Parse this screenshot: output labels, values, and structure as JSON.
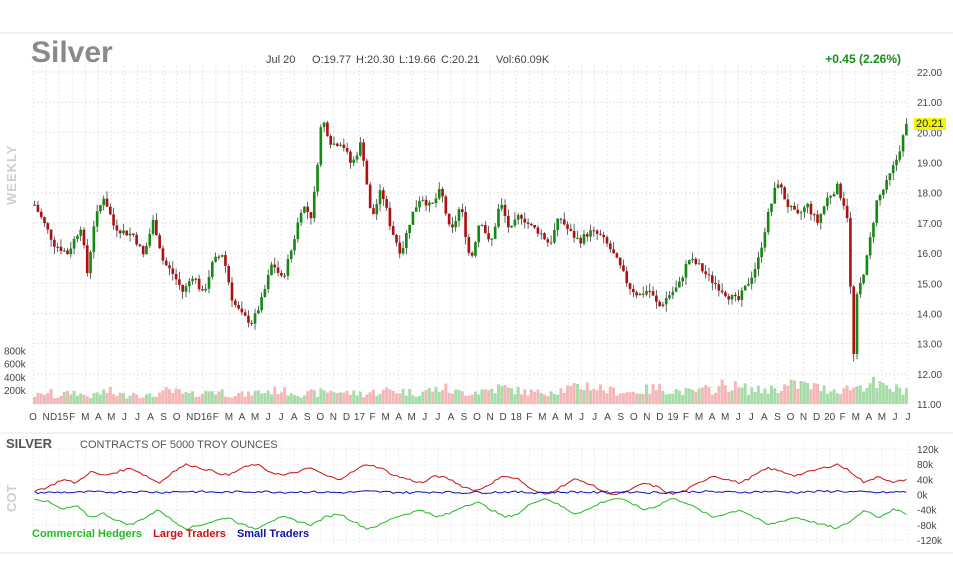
{
  "header": {
    "symbol": "Silver",
    "date": "Jul 20",
    "open": "O:19.77",
    "high": "H:20.30",
    "low": "L:19.66",
    "close": "C:20.21",
    "volume": "Vol:60.09K",
    "change": "+0.45 (2.26%)",
    "last_price": "20.21",
    "period_label": "WEEKLY"
  },
  "cot": {
    "title": "SILVER",
    "subtitle": "CONTRACTS OF 5000 TROY OUNCES",
    "side_label": "COT",
    "legend": [
      {
        "name": "Commercial Hedgers",
        "color": "#22bb22"
      },
      {
        "name": "Large Traders",
        "color": "#cc1111"
      },
      {
        "name": "Small Traders",
        "color": "#1111aa"
      }
    ],
    "y_ticks": [
      "120k",
      "80k",
      "40k",
      "0k",
      "-40k",
      "-80k",
      "-120k"
    ]
  },
  "chart_data": [
    {
      "type": "candlestick",
      "y_ticks": [
        "22.00",
        "21.00",
        "20.00",
        "19.00",
        "18.00",
        "17.00",
        "16.00",
        "15.00",
        "14.00",
        "13.00",
        "12.00",
        "11.00"
      ],
      "ylim": [
        11,
        22
      ],
      "volume_ticks": [
        "800k",
        "600k",
        "400k",
        "200k"
      ],
      "x_ticks": [
        "O",
        "N",
        "D15",
        "F",
        "M",
        "A",
        "M",
        "J",
        "J",
        "A",
        "S",
        "O",
        "N",
        "D16",
        "F",
        "M",
        "A",
        "M",
        "J",
        "J",
        "A",
        "S",
        "O",
        "N",
        "D",
        "17",
        "F",
        "M",
        "A",
        "M",
        "J",
        "J",
        "A",
        "S",
        "O",
        "N",
        "D",
        "18",
        "F",
        "M",
        "A",
        "M",
        "J",
        "J",
        "A",
        "S",
        "O",
        "N",
        "D",
        "19",
        "F",
        "M",
        "A",
        "M",
        "J",
        "J",
        "A",
        "S",
        "O",
        "N",
        "D",
        "20",
        "F",
        "M",
        "A",
        "M",
        "J",
        "J"
      ],
      "close_path": [
        [
          0,
          17.6
        ],
        [
          6,
          16.3
        ],
        [
          10,
          16.0
        ],
        [
          14,
          16.9
        ],
        [
          16,
          15.3
        ],
        [
          18,
          17.0
        ],
        [
          21,
          17.9
        ],
        [
          24,
          16.9
        ],
        [
          27,
          16.7
        ],
        [
          30,
          16.6
        ],
        [
          33,
          15.9
        ],
        [
          36,
          17.1
        ],
        [
          39,
          15.7
        ],
        [
          42,
          15.3
        ],
        [
          45,
          14.7
        ],
        [
          48,
          15.3
        ],
        [
          51,
          14.6
        ],
        [
          54,
          15.7
        ],
        [
          57,
          16.0
        ],
        [
          60,
          14.4
        ],
        [
          63,
          13.9
        ],
        [
          66,
          13.7
        ],
        [
          69,
          14.5
        ],
        [
          72,
          15.7
        ],
        [
          75,
          15.1
        ],
        [
          78,
          16.2
        ],
        [
          81,
          17.6
        ],
        [
          84,
          17.2
        ],
        [
          87,
          20.5
        ],
        [
          90,
          19.6
        ],
        [
          93,
          19.7
        ],
        [
          96,
          18.9
        ],
        [
          99,
          19.7
        ],
        [
          102,
          17.1
        ],
        [
          105,
          18.1
        ],
        [
          108,
          16.8
        ],
        [
          111,
          16.0
        ],
        [
          114,
          17.2
        ],
        [
          117,
          17.9
        ],
        [
          120,
          17.5
        ],
        [
          123,
          18.1
        ],
        [
          126,
          16.6
        ],
        [
          129,
          17.6
        ],
        [
          132,
          15.7
        ],
        [
          135,
          17.2
        ],
        [
          138,
          16.2
        ],
        [
          141,
          17.7
        ],
        [
          144,
          16.7
        ],
        [
          147,
          17.3
        ],
        [
          150,
          16.9
        ],
        [
          153,
          16.7
        ],
        [
          156,
          16.3
        ],
        [
          159,
          17.2
        ],
        [
          162,
          16.7
        ],
        [
          165,
          16.4
        ],
        [
          168,
          16.7
        ],
        [
          171,
          16.6
        ],
        [
          174,
          16.2
        ],
        [
          177,
          15.6
        ],
        [
          180,
          14.9
        ],
        [
          183,
          14.6
        ],
        [
          186,
          14.8
        ],
        [
          189,
          14.2
        ],
        [
          192,
          14.6
        ],
        [
          195,
          14.9
        ],
        [
          198,
          15.8
        ],
        [
          201,
          15.6
        ],
        [
          204,
          15.2
        ],
        [
          207,
          14.9
        ],
        [
          210,
          14.6
        ],
        [
          213,
          14.4
        ],
        [
          216,
          15.0
        ],
        [
          219,
          15.7
        ],
        [
          222,
          17.2
        ],
        [
          225,
          18.4
        ],
        [
          228,
          17.6
        ],
        [
          231,
          17.2
        ],
        [
          234,
          17.6
        ],
        [
          237,
          17.0
        ],
        [
          240,
          17.8
        ],
        [
          243,
          18.2
        ],
        [
          246,
          17.4
        ],
        [
          247,
          15.0
        ],
        [
          248,
          12.5
        ],
        [
          249,
          14.5
        ],
        [
          252,
          15.8
        ],
        [
          255,
          17.7
        ],
        [
          258,
          18.3
        ],
        [
          261,
          19.1
        ],
        [
          264,
          20.21
        ]
      ],
      "volume_k": [
        140,
        180,
        120,
        160,
        190,
        150,
        130,
        170,
        200,
        160,
        140,
        180,
        150,
        130,
        170,
        210,
        190,
        160,
        150,
        180,
        220,
        200,
        170,
        160,
        150,
        180,
        190,
        210,
        230,
        200,
        180,
        160,
        170,
        190,
        210,
        200,
        180,
        170,
        160,
        190,
        200,
        220,
        210,
        190,
        180,
        200,
        230,
        250,
        210,
        190,
        180,
        200,
        220,
        240,
        260,
        230,
        210,
        190,
        180,
        200,
        220,
        230,
        250,
        270,
        300,
        260,
        230,
        210,
        200,
        190,
        210,
        230,
        250,
        240,
        220,
        200,
        190,
        210,
        230,
        260,
        300,
        280,
        250,
        230,
        220,
        240,
        260,
        280,
        300,
        320,
        280,
        260,
        240,
        230,
        250,
        270,
        300,
        330,
        280,
        260,
        240,
        230
      ]
    },
    {
      "type": "line",
      "xlabel": "",
      "ylabel": "",
      "ylim": [
        -120,
        120
      ],
      "series": [
        {
          "name": "Commercial Hedgers",
          "color": "#22bb22",
          "values": [
            -10,
            -20,
            -40,
            -30,
            -60,
            -50,
            -70,
            -80,
            -60,
            -40,
            -70,
            -90,
            -80,
            -70,
            -60,
            -80,
            -90,
            -70,
            -60,
            -70,
            -80,
            -60,
            -50,
            -70,
            -90,
            -80,
            -60,
            -50,
            -40,
            -60,
            -50,
            -30,
            -20,
            -40,
            -60,
            -50,
            -20,
            -10,
            -30,
            -50,
            -40,
            -20,
            -10,
            -20,
            -40,
            -30,
            -10,
            -20,
            -40,
            -60,
            -50,
            -40,
            -60,
            -80,
            -70,
            -60,
            -70,
            -80,
            -90,
            -70,
            -40,
            -60,
            -40,
            -50
          ]
        },
        {
          "name": "Large Traders",
          "color": "#cc1111",
          "values": [
            10,
            20,
            40,
            30,
            60,
            50,
            60,
            70,
            50,
            30,
            60,
            80,
            70,
            60,
            50,
            70,
            80,
            60,
            50,
            60,
            70,
            50,
            40,
            60,
            80,
            70,
            50,
            40,
            30,
            50,
            40,
            20,
            10,
            30,
            50,
            40,
            10,
            0,
            20,
            40,
            30,
            10,
            0,
            10,
            30,
            20,
            0,
            10,
            30,
            50,
            40,
            30,
            50,
            70,
            60,
            50,
            60,
            70,
            80,
            60,
            30,
            50,
            30,
            40
          ]
        },
        {
          "name": "Small Traders",
          "color": "#1111aa",
          "values": [
            5,
            5,
            6,
            5,
            7,
            6,
            7,
            8,
            7,
            6,
            7,
            8,
            7,
            6,
            6,
            7,
            8,
            7,
            6,
            7,
            7,
            6,
            5,
            6,
            8,
            7,
            6,
            5,
            6,
            7,
            6,
            5,
            6,
            6,
            7,
            6,
            5,
            6,
            6,
            7,
            6,
            5,
            6,
            7,
            6,
            5,
            6,
            7,
            8,
            7,
            6,
            6,
            7,
            8,
            7,
            6,
            7,
            8,
            9,
            7,
            6,
            5,
            6,
            7
          ]
        }
      ]
    }
  ]
}
